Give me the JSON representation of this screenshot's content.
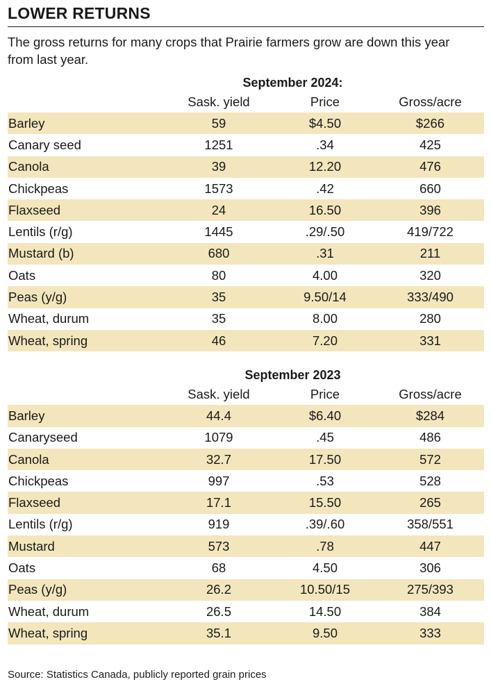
{
  "title": "LOWER RETURNS",
  "subtitle": "The gross returns for many crops that Prairie farmers grow are down this year from last year.",
  "columns": [
    "",
    "Sask. yield",
    "Price",
    "Gross/acre"
  ],
  "sections": [
    {
      "title": "September 2024:",
      "rows": [
        {
          "crop": "Barley",
          "yield": "59",
          "price": "$4.50",
          "gross": "$266"
        },
        {
          "crop": "Canary seed",
          "yield": "1251",
          "price": ".34",
          "gross": "425"
        },
        {
          "crop": "Canola",
          "yield": "39",
          "price": "12.20",
          "gross": "476"
        },
        {
          "crop": "Chickpeas",
          "yield": "1573",
          "price": ".42",
          "gross": "660"
        },
        {
          "crop": "Flaxseed",
          "yield": "24",
          "price": "16.50",
          "gross": "396"
        },
        {
          "crop": "Lentils (r/g)",
          "yield": "1445",
          "price": ".29/.50",
          "gross": "419/722"
        },
        {
          "crop": "Mustard (b)",
          "yield": "680",
          "price": ".31",
          "gross": "211"
        },
        {
          "crop": "Oats",
          "yield": "80",
          "price": "4.00",
          "gross": "320"
        },
        {
          "crop": "Peas (y/g)",
          "yield": "35",
          "price": "9.50/14",
          "gross": "333/490"
        },
        {
          "crop": "Wheat, durum",
          "yield": "35",
          "price": "8.00",
          "gross": "280"
        },
        {
          "crop": "Wheat, spring",
          "yield": "46",
          "price": "7.20",
          "gross": "331"
        }
      ]
    },
    {
      "title": "September 2023",
      "rows": [
        {
          "crop": "Barley",
          "yield": "44.4",
          "price": "$6.40",
          "gross": "$284"
        },
        {
          "crop": "Canaryseed",
          "yield": "1079",
          "price": ".45",
          "gross": "486"
        },
        {
          "crop": "Canola",
          "yield": "32.7",
          "price": "17.50",
          "gross": "572"
        },
        {
          "crop": "Chickpeas",
          "yield": "997",
          "price": ".53",
          "gross": "528"
        },
        {
          "crop": "Flaxseed",
          "yield": "17.1",
          "price": "15.50",
          "gross": "265"
        },
        {
          "crop": "Lentils (r/g)",
          "yield": "919",
          "price": ".39/.60",
          "gross": "358/551"
        },
        {
          "crop": "Mustard",
          "yield": "573",
          "price": ".78",
          "gross": "447"
        },
        {
          "crop": "Oats",
          "yield": "68",
          "price": "4.50",
          "gross": "306"
        },
        {
          "crop": "Peas (y/g)",
          "yield": "26.2",
          "price": "10.50/15",
          "gross": "275/393"
        },
        {
          "crop": "Wheat, durum",
          "yield": "26.5",
          "price": "14.50",
          "gross": "384"
        },
        {
          "crop": "Wheat, spring",
          "yield": "35.1",
          "price": "9.50",
          "gross": "333"
        }
      ]
    }
  ],
  "source": "Source: Statistics Canada, publicly reported grain prices",
  "colors": {
    "row_shade": "#f3e6bd",
    "text": "#1a1a1a",
    "rule": "#1a1a1a"
  }
}
